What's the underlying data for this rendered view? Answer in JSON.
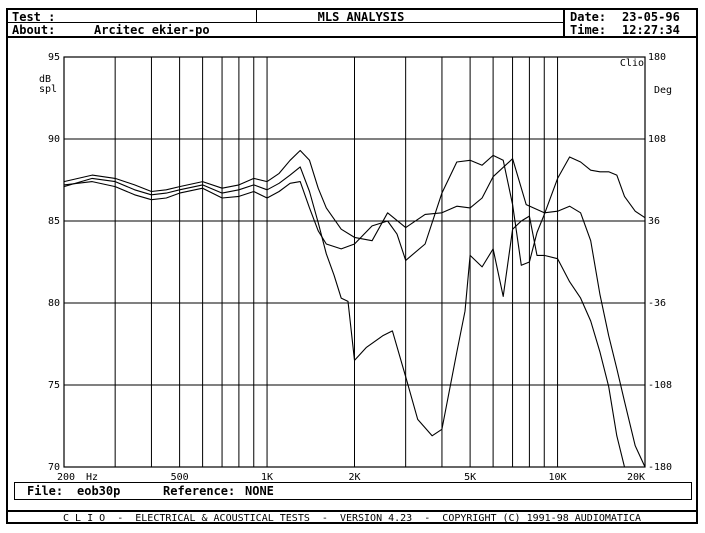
{
  "header": {
    "test_label": "Test :",
    "about_label": "About:",
    "about_value": "Arcitec ekier-po",
    "title": "MLS ANALYSIS",
    "date_label": "Date:",
    "date_value": "23-05-96",
    "time_label": "Time:",
    "time_value": "12:27:34"
  },
  "file_bar": {
    "file_label": "File:",
    "file_value": "eob30p",
    "reference_label": "Reference:",
    "reference_value": "NONE"
  },
  "footer": {
    "text": "C L I O  -  ELECTRICAL & ACOUSTICAL TESTS  -  VERSION 4.23  -  COPYRIGHT (C) 1991-98 AUDIOMATICA"
  },
  "chart_data": {
    "type": "line",
    "xscale": "log",
    "xlim": [
      200,
      20000
    ],
    "ylim": [
      70,
      95
    ],
    "y2lim": [
      -180,
      180
    ],
    "grid": true,
    "ylabel": "dB spl",
    "y2label": "Deg",
    "corner_label": "Clio",
    "xlabel": "Hz",
    "x_ticks": [
      {
        "value": 200,
        "label": "200"
      },
      {
        "value": 500,
        "label": "500"
      },
      {
        "value": 1000,
        "label": "1K"
      },
      {
        "value": 2000,
        "label": "2K"
      },
      {
        "value": 5000,
        "label": "5K"
      },
      {
        "value": 10000,
        "label": "10K"
      },
      {
        "value": 20000,
        "label": "20K"
      }
    ],
    "y_ticks": [
      {
        "value": 95,
        "label": "95"
      },
      {
        "value": 90,
        "label": "90"
      },
      {
        "value": 85,
        "label": "85"
      },
      {
        "value": 80,
        "label": "80"
      },
      {
        "value": 75,
        "label": "75"
      },
      {
        "value": 70,
        "label": "70"
      }
    ],
    "y2_ticks": [
      {
        "value": 180,
        "label": "180"
      },
      {
        "value": 108,
        "label": "108"
      },
      {
        "value": 36,
        "label": "36"
      },
      {
        "value": -36,
        "label": "-36"
      },
      {
        "value": -108,
        "label": "-108"
      },
      {
        "value": -180,
        "label": "-180"
      }
    ],
    "series": [
      {
        "points": [
          [
            200,
            87.4
          ],
          [
            250,
            87.8
          ],
          [
            300,
            87.6
          ],
          [
            350,
            87.2
          ],
          [
            400,
            86.8
          ],
          [
            450,
            86.9
          ],
          [
            500,
            87.1
          ],
          [
            600,
            87.4
          ],
          [
            700,
            87.0
          ],
          [
            800,
            87.2
          ],
          [
            900,
            87.6
          ],
          [
            1000,
            87.4
          ],
          [
            1100,
            87.9
          ],
          [
            1200,
            88.7
          ],
          [
            1300,
            89.3
          ],
          [
            1400,
            88.7
          ],
          [
            1500,
            87.0
          ],
          [
            1600,
            85.8
          ],
          [
            1800,
            84.5
          ],
          [
            2000,
            84.0
          ],
          [
            2300,
            83.8
          ],
          [
            2600,
            85.5
          ],
          [
            3000,
            84.6
          ],
          [
            3500,
            85.4
          ],
          [
            4000,
            85.5
          ],
          [
            4500,
            85.9
          ],
          [
            5000,
            85.8
          ],
          [
            5500,
            86.4
          ],
          [
            6000,
            87.7
          ],
          [
            7000,
            88.8
          ],
          [
            7800,
            86.0
          ],
          [
            9000,
            85.5
          ],
          [
            10000,
            85.6
          ],
          [
            11000,
            85.9
          ],
          [
            12000,
            85.5
          ],
          [
            13000,
            83.8
          ],
          [
            14000,
            80.5
          ],
          [
            15000,
            78.0
          ],
          [
            16000,
            76.0
          ],
          [
            17000,
            74.0
          ],
          [
            18500,
            71.3
          ],
          [
            20000,
            70.0
          ]
        ]
      },
      {
        "points": [
          [
            200,
            87.1
          ],
          [
            250,
            87.6
          ],
          [
            300,
            87.4
          ],
          [
            350,
            86.9
          ],
          [
            400,
            86.6
          ],
          [
            450,
            86.7
          ],
          [
            500,
            86.9
          ],
          [
            600,
            87.2
          ],
          [
            700,
            86.7
          ],
          [
            800,
            86.9
          ],
          [
            900,
            87.2
          ],
          [
            1000,
            86.9
          ],
          [
            1100,
            87.3
          ],
          [
            1200,
            87.8
          ],
          [
            1300,
            88.3
          ],
          [
            1400,
            86.8
          ],
          [
            1500,
            84.9
          ],
          [
            1600,
            83.0
          ],
          [
            1700,
            81.7
          ],
          [
            1800,
            80.3
          ],
          [
            1900,
            80.1
          ],
          [
            2000,
            76.5
          ],
          [
            2200,
            77.3
          ],
          [
            2500,
            78.0
          ],
          [
            2700,
            78.3
          ],
          [
            3000,
            75.5
          ],
          [
            3300,
            72.9
          ],
          [
            3700,
            71.9
          ],
          [
            4000,
            72.3
          ],
          [
            4500,
            77.0
          ],
          [
            4800,
            79.5
          ],
          [
            5000,
            82.9
          ],
          [
            5500,
            82.2
          ],
          [
            6000,
            83.3
          ],
          [
            6500,
            80.4
          ],
          [
            7000,
            84.5
          ],
          [
            7500,
            85.0
          ],
          [
            8000,
            85.3
          ],
          [
            8500,
            82.9
          ],
          [
            9000,
            82.9
          ],
          [
            10000,
            82.7
          ],
          [
            11000,
            81.3
          ],
          [
            12000,
            80.3
          ],
          [
            13000,
            78.9
          ],
          [
            14000,
            77.0
          ],
          [
            15000,
            74.9
          ],
          [
            16000,
            71.9
          ],
          [
            17000,
            70.0
          ]
        ]
      },
      {
        "points": [
          [
            200,
            87.2
          ],
          [
            250,
            87.4
          ],
          [
            300,
            87.1
          ],
          [
            350,
            86.6
          ],
          [
            400,
            86.3
          ],
          [
            450,
            86.4
          ],
          [
            500,
            86.7
          ],
          [
            600,
            87.0
          ],
          [
            700,
            86.4
          ],
          [
            800,
            86.5
          ],
          [
            900,
            86.8
          ],
          [
            1000,
            86.4
          ],
          [
            1100,
            86.8
          ],
          [
            1200,
            87.3
          ],
          [
            1300,
            87.4
          ],
          [
            1400,
            85.8
          ],
          [
            1500,
            84.4
          ],
          [
            1600,
            83.6
          ],
          [
            1800,
            83.3
          ],
          [
            2000,
            83.6
          ],
          [
            2300,
            84.7
          ],
          [
            2600,
            85.0
          ],
          [
            2800,
            84.2
          ],
          [
            3000,
            82.6
          ],
          [
            3500,
            83.6
          ],
          [
            4000,
            86.7
          ],
          [
            4500,
            88.6
          ],
          [
            5000,
            88.7
          ],
          [
            5500,
            88.4
          ],
          [
            6000,
            89.0
          ],
          [
            6500,
            88.7
          ],
          [
            7000,
            86.0
          ],
          [
            7500,
            82.3
          ],
          [
            8000,
            82.5
          ],
          [
            8500,
            84.3
          ],
          [
            9000,
            85.4
          ],
          [
            10000,
            87.6
          ],
          [
            11000,
            88.9
          ],
          [
            12000,
            88.6
          ],
          [
            13000,
            88.1
          ],
          [
            14000,
            88.0
          ],
          [
            15000,
            88.0
          ],
          [
            16000,
            87.8
          ],
          [
            17000,
            86.5
          ],
          [
            18500,
            85.6
          ],
          [
            20000,
            85.2
          ]
        ]
      }
    ]
  }
}
